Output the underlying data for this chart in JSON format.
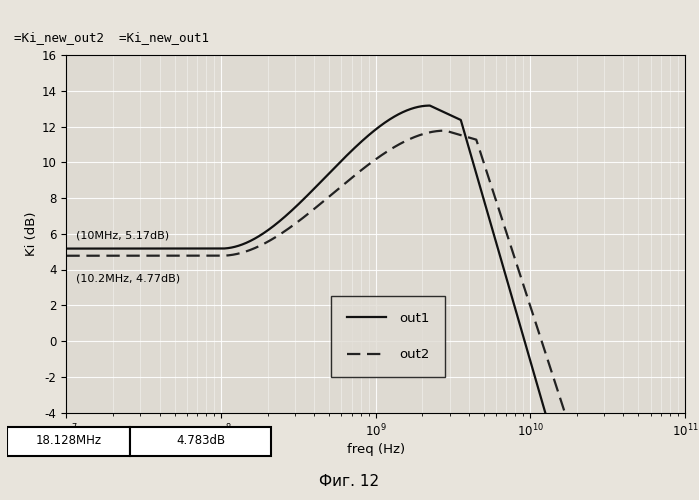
{
  "title_top": "=Ki_new_out2  =Ki_new_out1",
  "xlabel": "freq (Hz)",
  "ylabel": "Ki (dB)",
  "ylim": [
    -4.0,
    16.0
  ],
  "xlim": [
    10000000.0,
    100000000000.0
  ],
  "yticks": [
    -4.0,
    -2.0,
    0.0,
    2.0,
    4.0,
    6.0,
    8.0,
    10.0,
    12.0,
    14.0,
    16.0
  ],
  "annotation1": "(10MHz, 5.17dB)",
  "annotation2": "(10.2MHz, 4.77dB)",
  "legend_out1": "out1",
  "legend_out2": "out2",
  "figure_label": "Фиг. 12",
  "background_color": "#e8e4dc",
  "plot_bg_color": "#dedad2",
  "grid_color": "#ffffff",
  "line_color_out1": "#111111",
  "line_color_out2": "#222222",
  "status_left": "18.128MHz",
  "status_right": "4.783dB"
}
